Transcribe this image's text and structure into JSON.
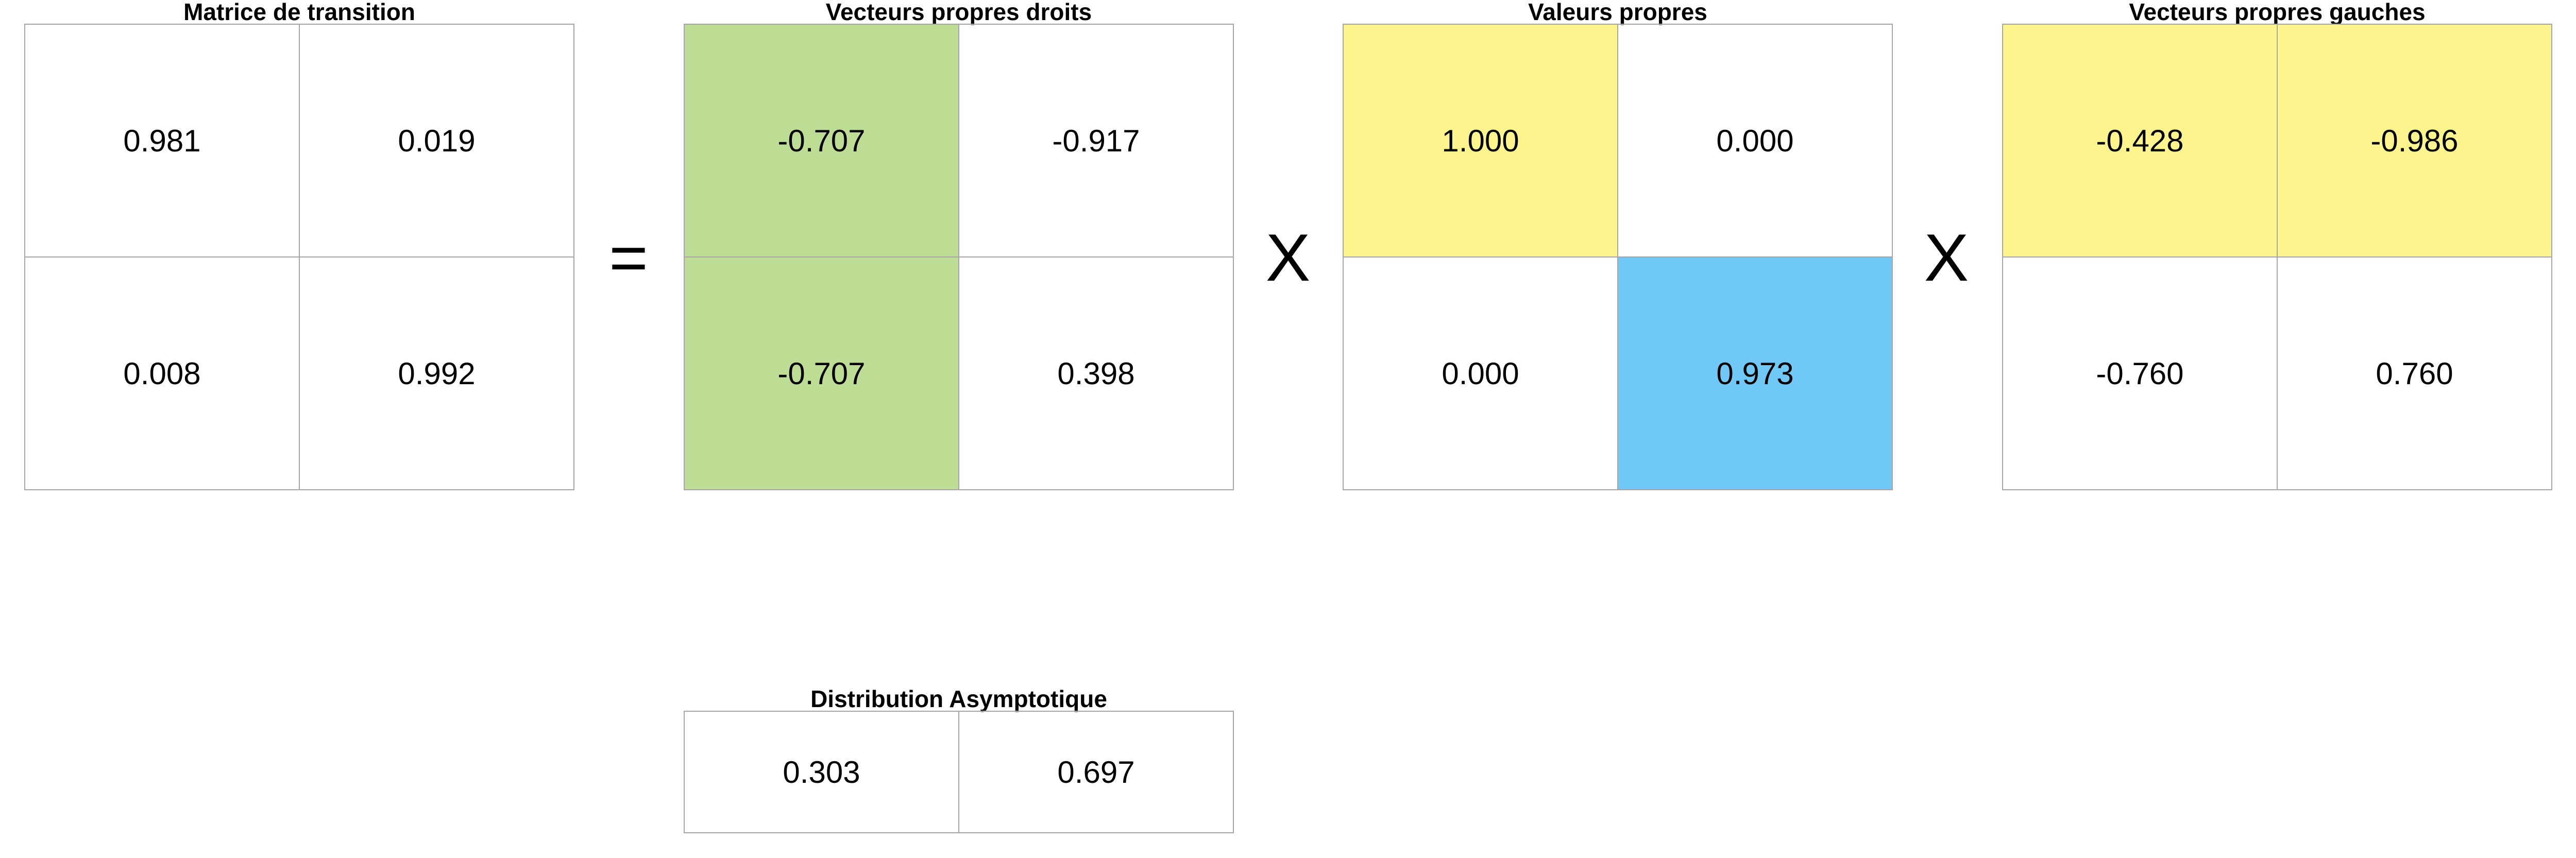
{
  "colors": {
    "green": "#bddd95",
    "yellow": "#fdf48e",
    "blue": "#70c8f7",
    "white": "#ffffff",
    "border": "#a6a6a6"
  },
  "transition": {
    "title": "Matrice de transition",
    "cells": [
      "0.981",
      "0.019",
      "0.008",
      "0.992"
    ]
  },
  "operators": {
    "equals": "=",
    "times_1": "X",
    "times_2": "X"
  },
  "right_eigenvectors": {
    "title": "Vecteurs propres droits",
    "cells": [
      "-0.707",
      "-0.917",
      "-0.707",
      "0.398"
    ]
  },
  "eigenvalues": {
    "title": "Valeurs propres",
    "cells": [
      "1.000",
      "0.000",
      "0.000",
      "0.973"
    ]
  },
  "left_eigenvectors": {
    "title": "Vecteurs propres gauches",
    "cells": [
      "-0.428",
      "-0.986",
      "-0.760",
      "0.760"
    ]
  },
  "asymptotic": {
    "title": "Distribution Asymptotique",
    "cells": [
      "0.303",
      "0.697"
    ]
  }
}
